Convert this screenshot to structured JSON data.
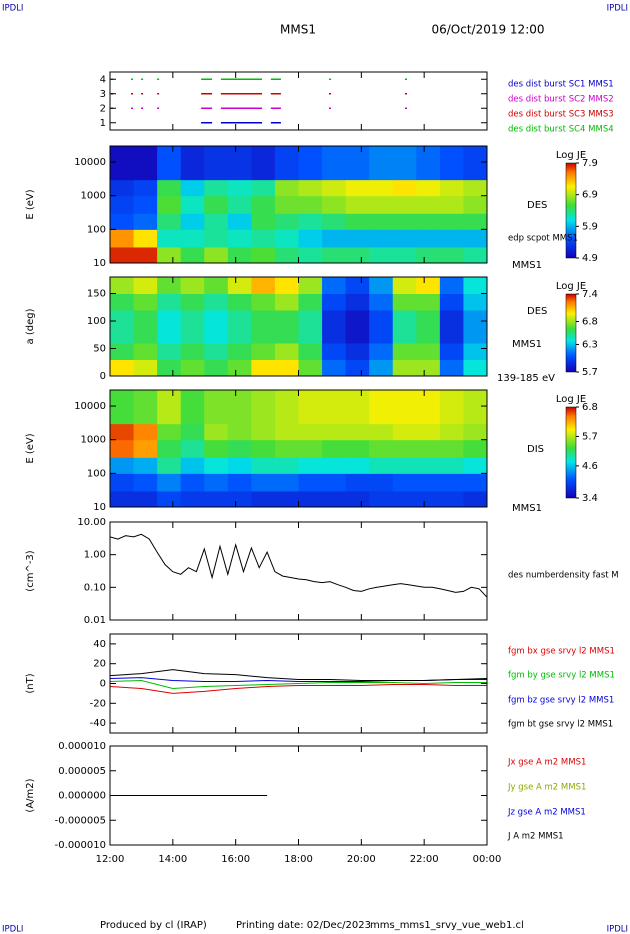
{
  "corner_label": "IPDLI",
  "title": "MMS1",
  "date": "06/Oct/2019 12:00",
  "footer": [
    "Produced by cl (IRAP)",
    "Printing date: 02/Dec/2023",
    "mms_mms1_srvy_vue_web1.cl"
  ],
  "chart_data": [
    {
      "type": "timeline",
      "ylim": [
        0.5,
        4.5
      ],
      "yticks": [
        1,
        2,
        3,
        4
      ],
      "series": [
        {
          "name": "des dist burst SC1 MMS1",
          "color": "#0000cc",
          "y": 1,
          "values": [
            [
              14.9,
              15.25
            ],
            [
              15.53,
              16.84
            ],
            [
              17.12,
              17.44
            ]
          ]
        },
        {
          "name": "des dist burst SC2 MMS2",
          "color": "#cc00cc",
          "y": 2,
          "values": [
            [
              12.03,
              12.1
            ],
            [
              12.67,
              12.72
            ],
            [
              12.99,
              13.04
            ],
            [
              13.5,
              13.55
            ],
            [
              14.9,
              15.25
            ],
            [
              15.53,
              16.84
            ],
            [
              17.12,
              17.44
            ],
            [
              18.97,
              19.02
            ],
            [
              21.39,
              21.44
            ]
          ]
        },
        {
          "name": "des dist burst SC3 MMS3",
          "color": "#cc0000",
          "y": 3,
          "values": [
            [
              12.03,
              12.1
            ],
            [
              12.67,
              12.72
            ],
            [
              12.99,
              13.04
            ],
            [
              13.5,
              13.55
            ],
            [
              14.9,
              15.25
            ],
            [
              15.53,
              16.84
            ],
            [
              17.12,
              17.44
            ],
            [
              18.97,
              19.02
            ],
            [
              21.39,
              21.44
            ]
          ]
        },
        {
          "name": "des dist burst SC4 MMS4",
          "color": "#00bb00",
          "y": 4,
          "values": [
            [
              12.03,
              12.1
            ],
            [
              12.67,
              12.72
            ],
            [
              12.99,
              13.04
            ],
            [
              13.5,
              13.55
            ],
            [
              14.9,
              15.25
            ],
            [
              15.53,
              16.84
            ],
            [
              17.12,
              17.44
            ],
            [
              18.97,
              19.02
            ],
            [
              21.39,
              21.44
            ]
          ]
        }
      ]
    },
    {
      "type": "spectrogram",
      "ylabel": "E (eV)",
      "log": true,
      "ylim": [
        10,
        30000
      ],
      "yticks": [
        10,
        100,
        1000,
        10000
      ],
      "labels": [
        "DES",
        "edp scpot MMS1",
        "MMS1"
      ],
      "colorbar_label": "Log JE",
      "zlim": [
        4.9,
        7.9
      ],
      "zticks": [
        4.9,
        5.9,
        6.9,
        7.9
      ],
      "xbins": [
        12,
        12.75,
        13.5,
        14.25,
        15,
        15.75,
        16.5,
        17.25,
        18,
        18.75,
        19.5,
        20.25,
        21,
        21.75,
        22.5,
        23.25,
        24
      ],
      "ybins": [
        10,
        30,
        100,
        300,
        1000,
        3000,
        30000
      ],
      "z": [
        [
          7.8,
          7.8,
          6.8,
          6.5,
          6.8,
          6.5,
          6.6,
          6.4,
          6.3,
          6.4,
          6.4,
          6.3,
          6.3,
          6.4,
          6.4,
          6.3
        ],
        [
          7.5,
          7.2,
          6.2,
          6.2,
          6.3,
          6.2,
          6.3,
          6.2,
          6.0,
          5.9,
          5.9,
          5.9,
          5.9,
          5.9,
          5.9,
          5.9
        ],
        [
          5.5,
          5.6,
          6.4,
          6.0,
          6.3,
          6.0,
          6.5,
          6.4,
          6.3,
          6.4,
          6.5,
          6.5,
          6.5,
          6.5,
          6.5,
          6.5
        ],
        [
          5.4,
          5.5,
          6.6,
          6.2,
          6.5,
          6.3,
          6.5,
          6.7,
          6.7,
          6.8,
          6.9,
          6.9,
          6.9,
          6.9,
          6.9,
          6.8
        ],
        [
          5.3,
          5.4,
          6.5,
          6.0,
          6.3,
          6.2,
          6.3,
          6.8,
          6.9,
          7.0,
          7.1,
          7.1,
          7.2,
          7.1,
          7.0,
          6.9
        ],
        [
          5.0,
          5.0,
          5.5,
          5.2,
          5.3,
          5.3,
          5.2,
          5.4,
          5.5,
          5.6,
          5.6,
          5.7,
          5.7,
          5.6,
          5.5,
          5.4
        ]
      ]
    },
    {
      "type": "spectrogram",
      "ylabel": "a (deg)",
      "log": false,
      "ylim": [
        0,
        180
      ],
      "yticks": [
        0,
        50,
        100,
        150
      ],
      "labels": [
        "DES",
        "MMS1",
        "139-185 eV"
      ],
      "colorbar_label": "Log JE",
      "zlim": [
        5.7,
        7.4
      ],
      "zticks": [
        5.7,
        6.3,
        6.8,
        7.4
      ],
      "xbins": [
        12,
        12.75,
        13.5,
        14.25,
        15,
        15.75,
        16.5,
        17.25,
        18,
        18.75,
        19.5,
        20.25,
        21,
        21.75,
        22.5,
        23.25,
        24
      ],
      "ybins": [
        0,
        30,
        60,
        90,
        120,
        150,
        180
      ],
      "z": [
        [
          7.0,
          6.9,
          6.6,
          6.7,
          6.6,
          6.7,
          7.0,
          7.0,
          6.7,
          6.1,
          6.0,
          6.2,
          6.8,
          6.8,
          6.1,
          6.4
        ],
        [
          6.6,
          6.7,
          6.5,
          6.6,
          6.5,
          6.6,
          6.7,
          6.8,
          6.6,
          6.0,
          5.9,
          6.1,
          6.7,
          6.7,
          6.0,
          6.3
        ],
        [
          6.5,
          6.6,
          6.4,
          6.5,
          6.4,
          6.5,
          6.6,
          6.6,
          6.5,
          5.9,
          5.8,
          6.0,
          6.5,
          6.6,
          5.9,
          6.2
        ],
        [
          6.5,
          6.6,
          6.4,
          6.5,
          6.4,
          6.5,
          6.6,
          6.6,
          6.5,
          5.9,
          5.8,
          6.0,
          6.5,
          6.6,
          5.9,
          6.2
        ],
        [
          6.6,
          6.7,
          6.5,
          6.6,
          6.5,
          6.6,
          6.7,
          6.8,
          6.6,
          6.0,
          5.9,
          6.1,
          6.7,
          6.7,
          6.0,
          6.3
        ],
        [
          6.8,
          6.9,
          6.7,
          6.8,
          6.7,
          6.9,
          7.1,
          7.0,
          6.8,
          6.1,
          6.0,
          6.2,
          6.9,
          7.0,
          6.1,
          6.4
        ]
      ]
    },
    {
      "type": "spectrogram",
      "ylabel": "E (eV)",
      "log": true,
      "ylim": [
        10,
        30000
      ],
      "yticks": [
        10,
        100,
        1000,
        10000
      ],
      "labels": [
        "DIS",
        "MMS1"
      ],
      "colorbar_label": "Log JE",
      "zlim": [
        3.4,
        6.8
      ],
      "zticks": [
        3.4,
        4.6,
        5.7,
        6.8
      ],
      "xbins": [
        12,
        12.75,
        13.5,
        14.25,
        15,
        15.75,
        16.5,
        17.25,
        18,
        18.75,
        19.5,
        20.25,
        21,
        21.75,
        22.5,
        23.25,
        24
      ],
      "ybins": [
        10,
        30,
        100,
        300,
        1000,
        3000,
        30000
      ],
      "z": [
        [
          3.8,
          3.8,
          4.0,
          3.9,
          3.9,
          3.9,
          3.8,
          3.8,
          3.8,
          3.8,
          3.8,
          3.9,
          3.9,
          3.9,
          3.9,
          3.8
        ],
        [
          4.0,
          4.1,
          4.3,
          4.1,
          4.2,
          4.1,
          4.2,
          4.2,
          4.1,
          4.1,
          4.0,
          4.0,
          4.1,
          4.1,
          4.1,
          4.1
        ],
        [
          4.4,
          4.5,
          5.0,
          4.6,
          4.8,
          4.7,
          4.9,
          4.9,
          4.8,
          4.8,
          4.8,
          4.9,
          4.9,
          4.9,
          4.9,
          4.8
        ],
        [
          6.5,
          6.3,
          5.2,
          5.0,
          5.3,
          5.2,
          5.3,
          5.4,
          5.4,
          5.3,
          5.3,
          5.4,
          5.4,
          5.4,
          5.4,
          5.3
        ],
        [
          6.6,
          6.4,
          5.4,
          5.2,
          5.6,
          5.5,
          5.6,
          5.7,
          5.7,
          5.7,
          5.7,
          5.7,
          5.8,
          5.8,
          5.7,
          5.6
        ],
        [
          5.3,
          5.4,
          5.7,
          5.3,
          5.5,
          5.5,
          5.6,
          5.7,
          5.8,
          5.8,
          5.8,
          5.9,
          5.9,
          5.9,
          5.8,
          5.7
        ]
      ]
    },
    {
      "type": "line",
      "ylabel": "(cm^-3)",
      "log": true,
      "ylim": [
        0.01,
        10
      ],
      "yticks": [
        {
          "value": 0.01,
          "label": "0.01"
        },
        {
          "value": 0.1,
          "label": "0.10"
        },
        {
          "value": 1,
          "label": "1.00"
        },
        {
          "value": 10,
          "label": "10.00"
        }
      ],
      "x": [
        12,
        12.25,
        12.5,
        12.75,
        13,
        13.25,
        13.5,
        13.75,
        14,
        14.25,
        14.5,
        14.75,
        15,
        15.25,
        15.5,
        15.75,
        16,
        16.25,
        16.5,
        16.75,
        17,
        17.25,
        17.5,
        17.75,
        18,
        18.25,
        18.5,
        18.75,
        19,
        19.25,
        19.5,
        19.75,
        20,
        20.25,
        20.5,
        20.75,
        21,
        21.25,
        21.5,
        21.75,
        22,
        22.25,
        22.5,
        22.75,
        23,
        23.25,
        23.5,
        23.75,
        24
      ],
      "series": [
        {
          "name": "des numberdensity fast M",
          "color": "#000000",
          "values": [
            3.5,
            3.0,
            3.8,
            3.5,
            4.2,
            3.0,
            1.2,
            0.5,
            0.3,
            0.25,
            0.4,
            0.3,
            1.5,
            0.2,
            1.8,
            0.25,
            2.0,
            0.3,
            1.6,
            0.4,
            1.2,
            0.3,
            0.22,
            0.2,
            0.18,
            0.17,
            0.15,
            0.14,
            0.15,
            0.12,
            0.1,
            0.08,
            0.075,
            0.09,
            0.1,
            0.11,
            0.12,
            0.13,
            0.12,
            0.11,
            0.1,
            0.1,
            0.09,
            0.08,
            0.07,
            0.075,
            0.1,
            0.09,
            0.05
          ]
        }
      ]
    },
    {
      "type": "line",
      "ylabel": "(nT)",
      "log": false,
      "ylim": [
        -50,
        50
      ],
      "yticks": [
        -40,
        -20,
        0,
        20,
        40
      ],
      "x": [
        12,
        13,
        14,
        15,
        16,
        17,
        18,
        19,
        20,
        21,
        22,
        23,
        24
      ],
      "series": [
        {
          "name": "fgm bx gse srvy l2 MMS1",
          "color": "#dd0000",
          "values": [
            -3,
            -5,
            -10,
            -8,
            -5,
            -3,
            -2,
            -2,
            -2,
            -1,
            -1,
            -2,
            -2
          ]
        },
        {
          "name": "fgm by gse srvy l2 MMS1",
          "color": "#00bb00",
          "values": [
            2,
            3,
            -5,
            -3,
            -2,
            -1,
            0,
            1,
            1,
            1,
            0,
            1,
            1
          ]
        },
        {
          "name": "fgm bz gse srvy l2 MMS1",
          "color": "#0000dd",
          "values": [
            5,
            6,
            3,
            2,
            2,
            3,
            2,
            2,
            2,
            3,
            3,
            4,
            4
          ]
        },
        {
          "name": "fgm bt gse srvy l2 MMS1",
          "color": "#000000",
          "values": [
            8,
            10,
            14,
            10,
            9,
            6,
            4,
            4,
            3,
            3,
            3,
            4,
            5
          ]
        }
      ]
    },
    {
      "type": "line",
      "ylabel": "(A/m2)",
      "log": false,
      "ylim": [
        -1e-05,
        1e-05
      ],
      "yticks": [
        {
          "value": 1e-05,
          "label": "0.000010"
        },
        {
          "value": 5e-06,
          "label": "0.000005"
        },
        {
          "value": 0,
          "label": "0.000000"
        },
        {
          "value": -5e-06,
          "label": "-0.000005"
        },
        {
          "value": -1e-05,
          "label": "-0.000010"
        }
      ],
      "xlim": [
        12,
        24
      ],
      "xticks": [
        {
          "value": 12,
          "label": "12:00"
        },
        {
          "value": 14,
          "label": "14:00"
        },
        {
          "value": 16,
          "label": "16:00"
        },
        {
          "value": 18,
          "label": "18:00"
        },
        {
          "value": 20,
          "label": "20:00"
        },
        {
          "value": 22,
          "label": "22:00"
        },
        {
          "value": 24,
          "label": "00:00"
        }
      ],
      "x": [
        12,
        13,
        14,
        15,
        16,
        17
      ],
      "series": [
        {
          "name": "Jx gse A m2 MMS1",
          "color": "#dd0000"
        },
        {
          "name": "Jy gse A m2 MMS1",
          "color": "#88aa00"
        },
        {
          "name": "Jz gse A m2 MMS1",
          "color": "#0000dd"
        },
        {
          "name": "J A m2 MMS1",
          "color": "#000000",
          "values": [
            0,
            0,
            0,
            0,
            0,
            0
          ]
        }
      ]
    }
  ]
}
